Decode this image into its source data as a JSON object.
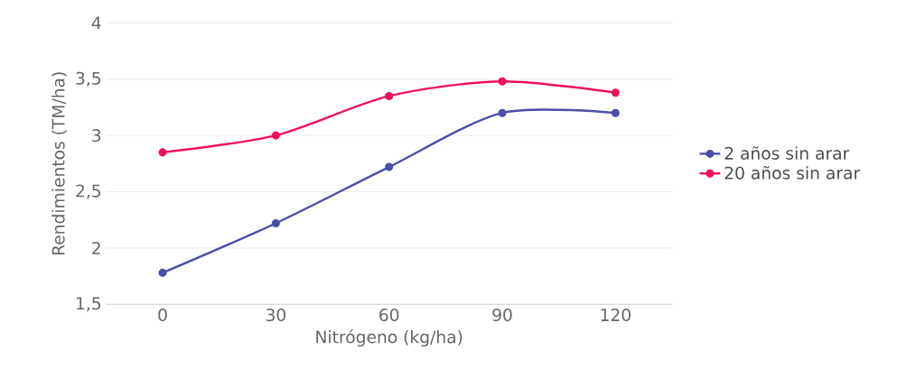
{
  "chart_data": {
    "type": "line",
    "xlabel": "Nitrógeno (kg/ha)",
    "ylabel": "Rendimientos (TM/ha)",
    "categories": [
      "0",
      "30",
      "60",
      "90",
      "120"
    ],
    "series": [
      {
        "name": "2 años sin arar",
        "color": "#4b4fa6",
        "values": [
          1.78,
          2.22,
          2.72,
          3.2,
          3.2
        ]
      },
      {
        "name": "20 años sin arar",
        "color": "#f0105d",
        "values": [
          2.85,
          3.0,
          3.35,
          3.48,
          3.38
        ]
      }
    ],
    "ylim": [
      1.5,
      4
    ],
    "yticks": [
      {
        "value": 1.5,
        "label": "1,5"
      },
      2,
      {
        "value": 2.5,
        "label": "2,5"
      },
      3,
      {
        "value": 3.5,
        "label": "3,5"
      },
      4
    ],
    "grid": "y",
    "legend": "right",
    "marker": "circle",
    "line_style": "solid"
  }
}
